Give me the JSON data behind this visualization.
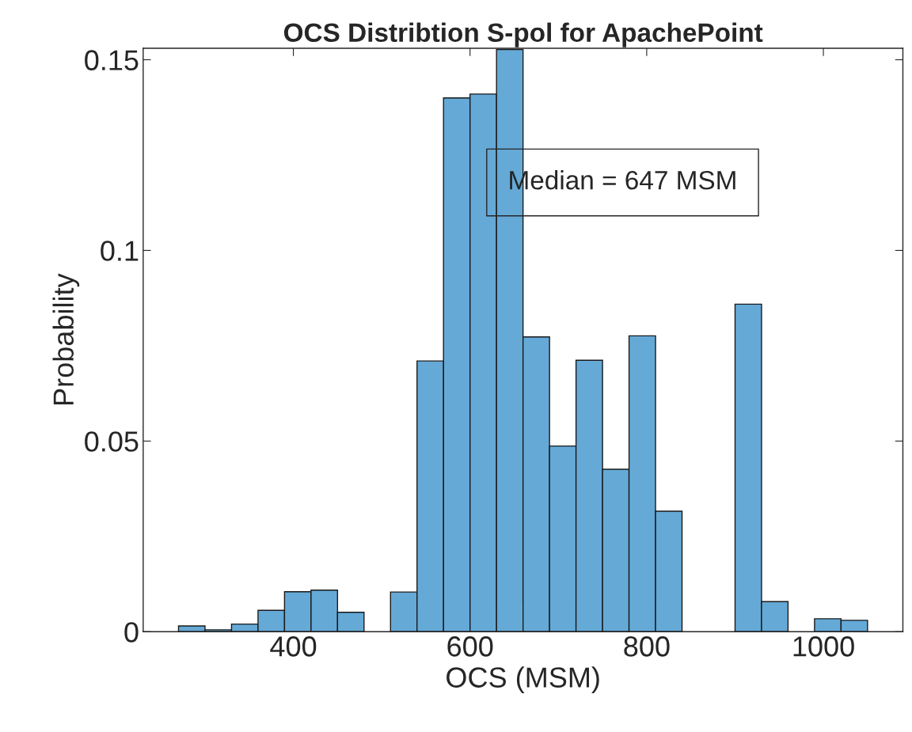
{
  "chart_data": {
    "type": "histogram",
    "title": "OCS Distribtion S-pol for ApachePoint",
    "xlabel": "OCS (MSM)",
    "ylabel": "Probability",
    "bins": [
      270,
      300,
      330,
      360,
      390,
      420,
      450,
      480,
      510,
      540,
      570,
      600,
      630,
      660,
      690,
      720,
      750,
      780,
      810,
      840,
      870,
      900,
      930,
      960,
      990,
      1020,
      1050
    ],
    "values": [
      0.0015,
      0.0005,
      0.002,
      0.0056,
      0.0105,
      0.0109,
      0.0051,
      0,
      0.0104,
      0.071,
      0.14,
      0.141,
      0.1527,
      0.0773,
      0.0487,
      0.0712,
      0.0426,
      0.0776,
      0.0316,
      0,
      0,
      0.0859,
      0.0079,
      0,
      0.0034,
      0.003
    ],
    "color": "#65a9d7",
    "xlim": [
      230,
      1090
    ],
    "ylim": [
      0,
      0.153
    ],
    "xticks": [
      400,
      600,
      800,
      1000
    ],
    "yticks": [
      0,
      0.05,
      0.1,
      0.15
    ],
    "grid": false,
    "annotations": [
      "Median = 647 MSM"
    ]
  }
}
